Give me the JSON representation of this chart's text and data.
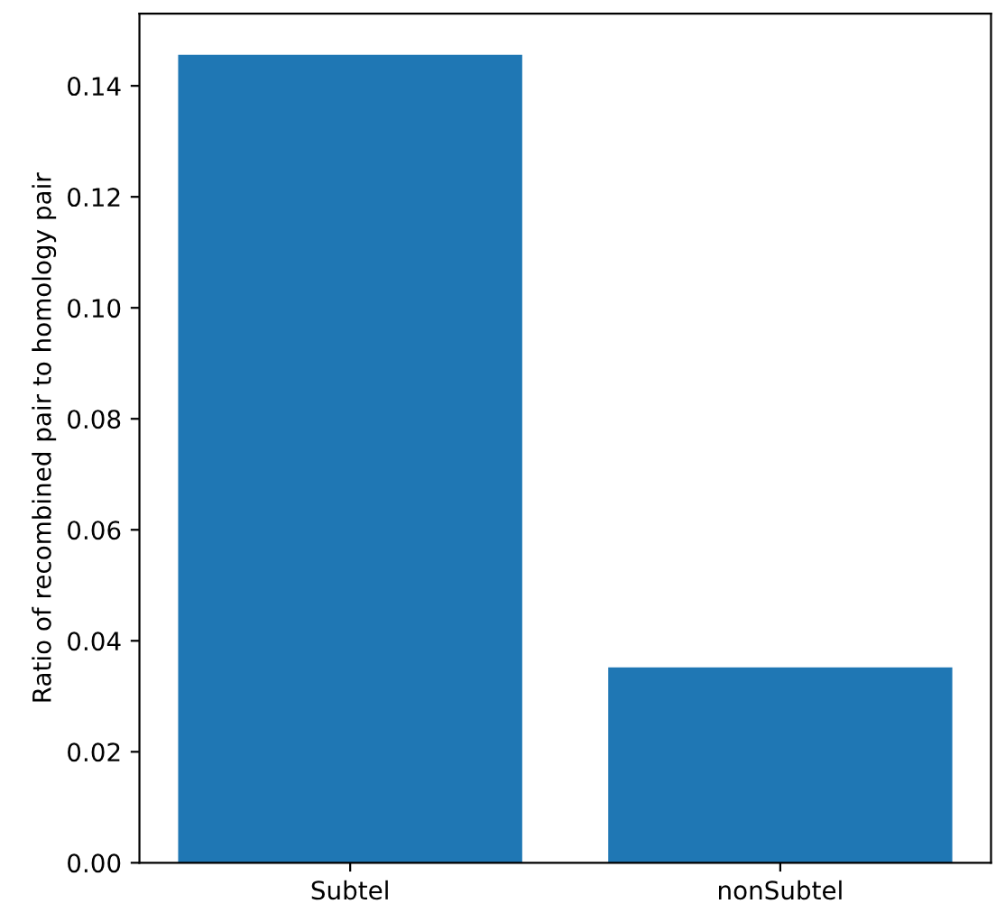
{
  "chart_data": {
    "type": "bar",
    "ylabel": "Ratio of recombined pair to homology pair",
    "categories": [
      "Subtel",
      "nonSubtel"
    ],
    "values": [
      0.1456,
      0.0352
    ],
    "color": "#1f77b4",
    "ylim": [
      0,
      0.153
    ],
    "yticks": [
      {
        "value": 0,
        "label": "0.00"
      },
      0.02,
      0.04,
      0.06,
      0.08,
      {
        "value": 0.1,
        "label": "0.10"
      },
      0.12,
      0.14
    ],
    "grid": false
  }
}
